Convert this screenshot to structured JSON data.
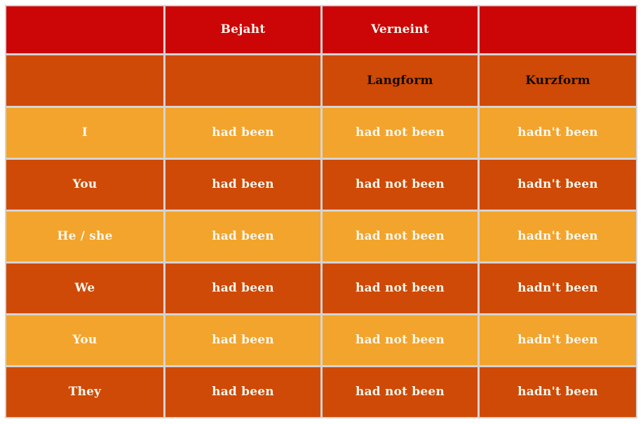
{
  "table": {
    "header_row": [
      "",
      "Bejaht",
      "Verneint",
      ""
    ],
    "subheader_row": [
      "",
      "",
      "Langform",
      "Kurzform"
    ],
    "body_rows": [
      {
        "pronoun": "I",
        "affirmative": "had been",
        "negative_long": "had not been",
        "negative_short": "hadn't been"
      },
      {
        "pronoun": "You",
        "affirmative": "had been",
        "negative_long": "had not been",
        "negative_short": "hadn't been"
      },
      {
        "pronoun": "He / she",
        "affirmative": "had been",
        "negative_long": "had not been",
        "negative_short": "hadn't been"
      },
      {
        "pronoun": "We",
        "affirmative": "had been",
        "negative_long": "had not been",
        "negative_short": "hadn't been"
      },
      {
        "pronoun": "You",
        "affirmative": "had been",
        "negative_long": "had not been",
        "negative_short": "hadn't been"
      },
      {
        "pronoun": "They",
        "affirmative": "had been",
        "negative_long": "had not been",
        "negative_short": "hadn't been"
      }
    ]
  },
  "colors": {
    "header_bg": "#cc0606",
    "subheader_bg": "#ce4a06",
    "row_amber_bg": "#f3a42c",
    "row_dark_bg": "#ce4a06",
    "grid_line": "#d4d4d4",
    "light_text": "#fdf8ef",
    "dark_text": "#140a00",
    "page_bg": "#ffffff"
  }
}
